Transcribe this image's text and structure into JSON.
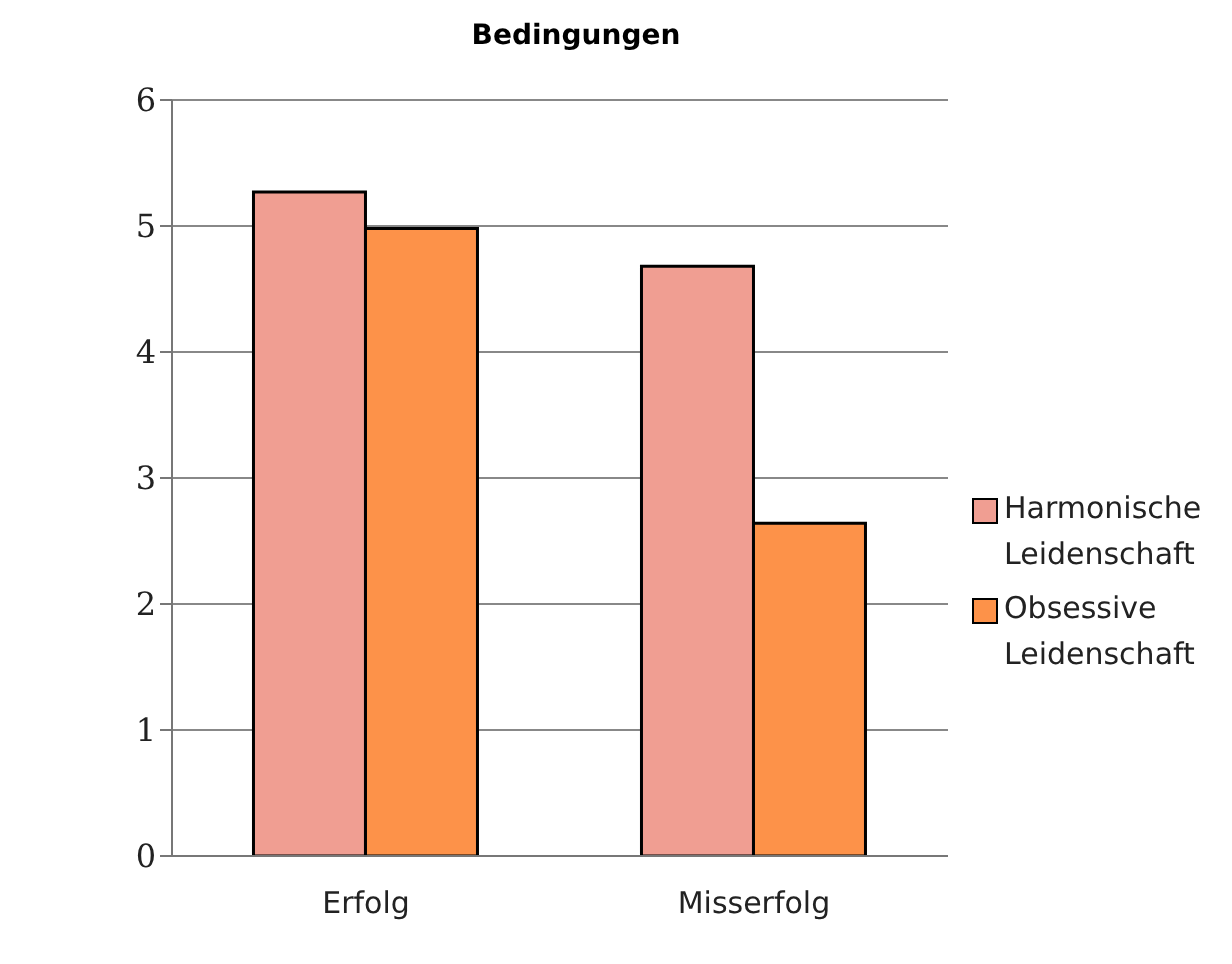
{
  "chart_data": {
    "type": "bar",
    "title": "Bedingungen",
    "categories": [
      "Erfolg",
      "Misserfolg"
    ],
    "series": [
      {
        "name": "Harmonische Leidenschaft",
        "color": "#f09e92",
        "values": [
          5.27,
          4.68
        ]
      },
      {
        "name": "Obsessive Leidenschaft",
        "color": "#fd9249",
        "values": [
          4.98,
          2.64
        ]
      }
    ],
    "ylim": [
      0,
      6
    ],
    "yticks": [
      0,
      1,
      2,
      3,
      4,
      5,
      6
    ],
    "grid": "y",
    "legend": "right"
  }
}
